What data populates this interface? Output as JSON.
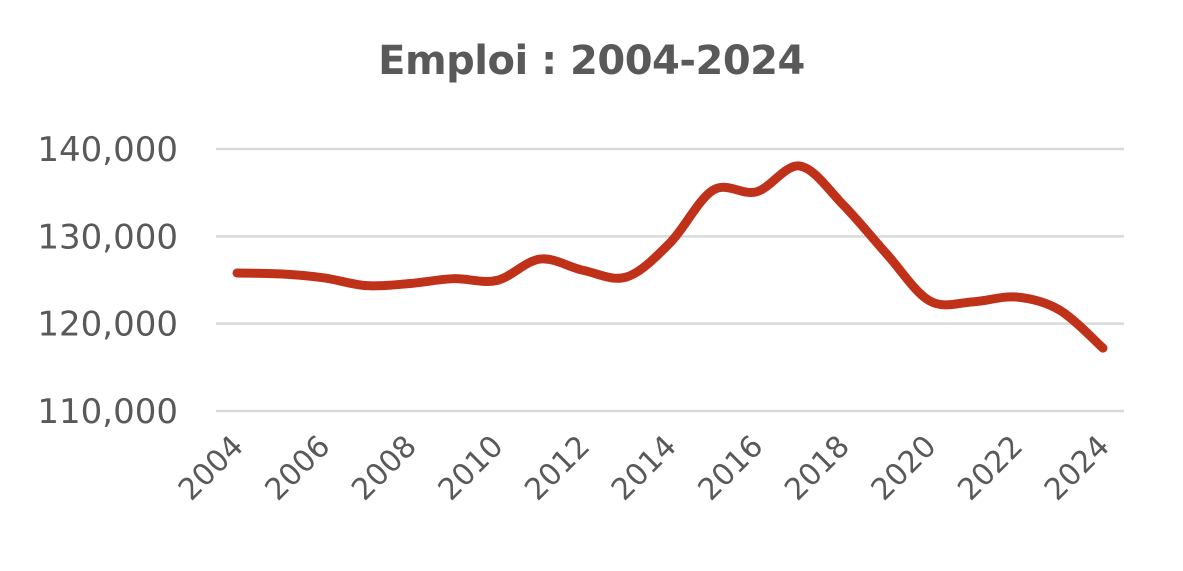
{
  "chart_data": {
    "type": "line",
    "title": "Emploi : 2004-2024",
    "xlabel": "",
    "ylabel": "",
    "x": [
      2004,
      2005,
      2006,
      2007,
      2008,
      2009,
      2010,
      2011,
      2012,
      2013,
      2014,
      2015,
      2016,
      2017,
      2018,
      2019,
      2020,
      2021,
      2022,
      2023,
      2024
    ],
    "series": [
      {
        "name": "Emploi",
        "color": "#C0311A",
        "values": [
          125800,
          125700,
          125250,
          124350,
          124600,
          125150,
          124950,
          127400,
          126100,
          125350,
          129250,
          135300,
          135100,
          138050,
          133600,
          128000,
          122600,
          122500,
          123050,
          121550,
          117200
        ]
      }
    ],
    "ylim": [
      110000,
      140000
    ],
    "yticks": [
      110000,
      120000,
      130000,
      140000
    ],
    "ytick_labels": [
      "110,000",
      "120,000",
      "130,000",
      "140,000"
    ],
    "xtick_labels": [
      "2004",
      "2006",
      "2008",
      "2010",
      "2012",
      "2014",
      "2016",
      "2018",
      "2020",
      "2022",
      "2024"
    ],
    "grid": true,
    "legend": "none",
    "smooth": true
  },
  "colors": {
    "line": "#C0311A",
    "grid": "#D9D9D9",
    "text": "#595959"
  }
}
